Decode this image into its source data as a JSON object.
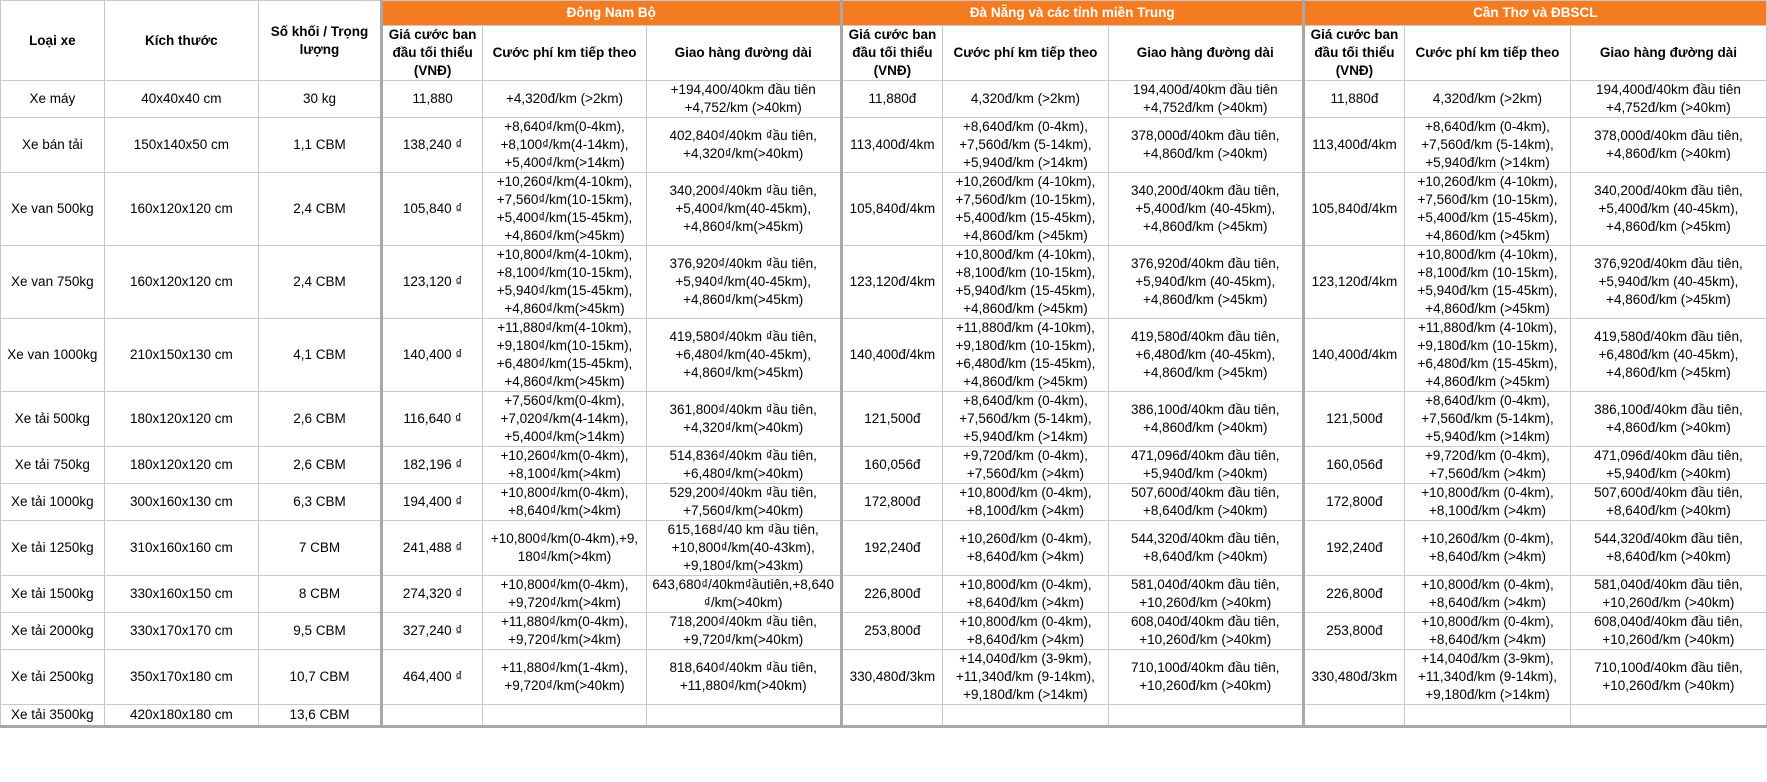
{
  "header": {
    "fixed": [
      "Loại xe",
      "Kích thước",
      "Số khối / Trọng lượng"
    ],
    "regions": [
      "Đông Nam Bộ",
      "Đà Nẵng và các tỉnh miền Trung",
      "Cần Thơ và ĐBSCL"
    ],
    "sub": [
      "Giá cước ban đầu tối thiểu (VNĐ)",
      "Cước phí km tiếp theo",
      "Giao hàng đường dài"
    ]
  },
  "rows": [
    [
      "Xe máy",
      "40x40x40 cm",
      "30 kg",
      "11,880",
      "+4,320đ/km (>2km)",
      "+194,400/40km đầu tiên\n+4,752/km (>40km)",
      "11,880đ",
      "4,320đ/km (>2km)",
      "194,400đ/40km đầu tiên\n+4,752đ/km (>40km)",
      "11,880đ",
      "4,320đ/km (>2km)",
      "194,400đ/40km đầu tiên\n+4,752đ/km (>40km)"
    ],
    [
      "Xe bán tải",
      "150x140x50 cm",
      "1,1 CBM",
      "138,240 ₫",
      "+8,640₫/km(0-4km),\n+8,100₫/km(4-14km),\n+5,400₫/km(>14km)",
      "402,840₫/40km ₫ầu tiên,\n+4,320₫/km(>40km)",
      "113,400đ/4km",
      "+8,640đ/km (0-4km),\n+7,560đ/km (5-14km),\n+5,940đ/km (>14km)",
      "378,000đ/40km đầu tiên,\n+4,860đ/km (>40km)",
      "113,400đ/4km",
      "+8,640đ/km (0-4km),\n+7,560đ/km (5-14km),\n+5,940đ/km (>14km)",
      "378,000đ/40km đầu tiên,\n+4,860đ/km (>40km)"
    ],
    [
      "Xe van 500kg",
      "160x120x120 cm",
      "2,4 CBM",
      "105,840 ₫",
      "+10,260₫/km(4-10km),\n+7,560₫/km(10-15km),\n+5,400₫/km(15-45km),\n+4,860₫/km(>45km)",
      "340,200₫/40km ₫ầu tiên,\n+5,400₫/km(40-45km),\n+4,860₫/km(>45km)",
      "105,840đ/4km",
      "+10,260đ/km (4-10km),\n+7,560đ/km (10-15km),\n+5,400đ/km (15-45km),\n+4,860đ/km (>45km)",
      "340,200đ/40km đầu tiên,\n+5,400đ/km (40-45km),\n+4,860đ/km (>45km)",
      "105,840đ/4km",
      "+10,260đ/km (4-10km),\n+7,560đ/km (10-15km),\n+5,400đ/km (15-45km),\n+4,860đ/km (>45km)",
      "340,200đ/40km đầu tiên,\n+5,400đ/km (40-45km),\n+4,860đ/km (>45km)"
    ],
    [
      "Xe van 750kg",
      "160x120x120 cm",
      "2,4 CBM",
      "123,120 ₫",
      "+10,800₫/km(4-10km),\n+8,100₫/km(10-15km),\n+5,940₫/km(15-45km),\n+4,860₫/km(>45km)",
      "376,920₫/40km ₫ầu tiên,\n+5,940₫/km(40-45km),\n+4,860₫/km(>45km)",
      "123,120đ/4km",
      "+10,800đ/km (4-10km),\n+8,100đ/km (10-15km),\n+5,940đ/km (15-45km),\n+4,860đ/km (>45km)",
      "376,920đ/40km đầu tiên,\n+5,940đ/km (40-45km),\n+4,860đ/km (>45km)",
      "123,120đ/4km",
      "+10,800đ/km (4-10km),\n+8,100đ/km (10-15km),\n+5,940đ/km (15-45km),\n+4,860đ/km (>45km)",
      "376,920đ/40km đầu tiên,\n+5,940đ/km (40-45km),\n+4,860đ/km (>45km)"
    ],
    [
      "Xe van 1000kg",
      "210x150x130 cm",
      "4,1 CBM",
      "140,400 ₫",
      "+11,880₫/km(4-10km),\n+9,180₫/km(10-15km),\n+6,480₫/km(15-45km),\n+4,860₫/km(>45km)",
      "419,580₫/40km ₫ầu tiên,\n+6,480₫/km(40-45km),\n+4,860₫/km(>45km)",
      "140,400đ/4km",
      "+11,880đ/km (4-10km),\n+9,180đ/km (10-15km),\n+6,480đ/km (15-45km),\n+4,860đ/km (>45km)",
      "419,580đ/40km đầu tiên,\n+6,480đ/km (40-45km),\n+4,860đ/km (>45km)",
      "140,400đ/4km",
      "+11,880đ/km (4-10km),\n+9,180đ/km (10-15km),\n+6,480đ/km (15-45km),\n+4,860đ/km (>45km)",
      "419,580đ/40km đầu tiên,\n+6,480đ/km (40-45km),\n+4,860đ/km (>45km)"
    ],
    [
      "Xe tải 500kg",
      "180x120x120 cm",
      "2,6 CBM",
      "116,640 ₫",
      "+7,560₫/km(0-4km),\n+7,020₫/km(4-14km),\n+5,400₫/km(>14km)",
      "361,800₫/40km ₫ầu tiên,\n+4,320₫/km(>40km)",
      "121,500đ",
      "+8,640đ/km (0-4km),\n+7,560đ/km (5-14km),\n+5,940đ/km (>14km)",
      "386,100đ/40km đầu tiên,\n+4,860đ/km (>40km)",
      "121,500đ",
      "+8,640đ/km (0-4km),\n+7,560đ/km (5-14km),\n+5,940đ/km (>14km)",
      "386,100đ/40km đầu tiên,\n+4,860đ/km (>40km)"
    ],
    [
      "Xe tải 750kg",
      "180x120x120 cm",
      "2,6 CBM",
      "182,196 ₫",
      "+10,260₫/km(0-4km),\n+8,100₫/km(>4km)",
      "514,836₫/40km ₫ầu tiên,\n+6,480₫/km(>40km)",
      "160,056đ",
      "+9,720đ/km (0-4km),\n+7,560đ/km (>4km)",
      "471,096đ/40km đầu tiên,\n+5,940đ/km (>40km)",
      "160,056đ",
      "+9,720đ/km (0-4km),\n+7,560đ/km (>4km)",
      "471,096đ/40km đầu tiên,\n+5,940đ/km (>40km)"
    ],
    [
      "Xe tải 1000kg",
      "300x160x130 cm",
      "6,3 CBM",
      "194,400 ₫",
      "+10,800₫/km(0-4km),\n+8,640₫/km(>4km)",
      "529,200₫/40km ₫ầu tiên,\n+7,560₫/km(>40km)",
      "172,800đ",
      "+10,800đ/km (0-4km),\n+8,100đ/km (>4km)",
      "507,600đ/40km đầu tiên,\n+8,640đ/km (>40km)",
      "172,800đ",
      "+10,800đ/km (0-4km),\n+8,100đ/km (>4km)",
      "507,600đ/40km đầu tiên,\n+8,640đ/km (>40km)"
    ],
    [
      "Xe tải 1250kg",
      "310x160x160 cm",
      "7 CBM",
      "241,488 ₫",
      "+10,800₫/km(0-4km),+9,\n180₫/km(>4km)",
      "615,168₫/40 km ₫ầu tiên,\n+10,800₫/km(40-43km),\n+9,180₫/km(>43km)",
      "192,240đ",
      "+10,260đ/km (0-4km),\n+8,640đ/km (>4km)",
      "544,320đ/40km đầu tiên,\n+8,640đ/km (>40km)",
      "192,240đ",
      "+10,260đ/km (0-4km),\n+8,640đ/km (>4km)",
      "544,320đ/40km đầu tiên,\n+8,640đ/km (>40km)"
    ],
    [
      "Xe tải 1500kg",
      "330x160x150 cm",
      "8 CBM",
      "274,320 ₫",
      "+10,800₫/km(0-4km),\n+9,720₫/km(>4km)",
      "643,680₫/40km₫ầutiên,+8,640\n₫/km(>40km)",
      "226,800đ",
      "+10,800đ/km (0-4km),\n+8,640đ/km (>4km)",
      "581,040đ/40km đầu tiên,\n+10,260đ/km (>40km)",
      "226,800đ",
      "+10,800đ/km (0-4km),\n+8,640đ/km (>4km)",
      "581,040đ/40km đầu tiên,\n+10,260đ/km (>40km)"
    ],
    [
      "Xe tải 2000kg",
      "330x170x170 cm",
      "9,5 CBM",
      "327,240 ₫",
      "+11,880₫/km(0-4km),\n+9,720₫/km(>4km)",
      "718,200₫/40km ₫ầu tiên,\n+9,720₫/km(>40km)",
      "253,800đ",
      "+10,800đ/km (0-4km),\n+8,640đ/km (>4km)",
      "608,040đ/40km đầu tiên,\n+10,260đ/km (>40km)",
      "253,800đ",
      "+10,800đ/km (0-4km),\n+8,640đ/km (>4km)",
      "608,040đ/40km đầu tiên,\n+10,260đ/km (>40km)"
    ],
    [
      "Xe tải 2500kg",
      "350x170x180 cm",
      "10,7 CBM",
      "464,400 ₫",
      "+11,880₫/km(1-4km),\n+9,720₫/km(>40km)",
      "818,640₫/40km ₫ầu tiên,\n+11,880₫/km(>40km)",
      "330,480đ/3km",
      "+14,040đ/km (3-9km),\n+11,340đ/km (9-14km),\n+9,180đ/km (>14km)",
      "710,100đ/40km đầu tiên,\n+10,260đ/km (>40km)",
      "330,480đ/3km",
      "+14,040đ/km (3-9km),\n+11,340đ/km (9-14km),\n+9,180đ/km (>14km)",
      "710,100đ/40km đầu tiên,\n+10,260đ/km (>40km)"
    ],
    [
      "Xe tải 3500kg",
      "420x180x180 cm",
      "13,6 CBM",
      "",
      "",
      "",
      "",
      "",
      "",
      "",
      "",
      ""
    ]
  ],
  "colors": {
    "region_header": "#f47b20",
    "region_header_text": "#ffffff",
    "grid": "#c8c8c8"
  }
}
